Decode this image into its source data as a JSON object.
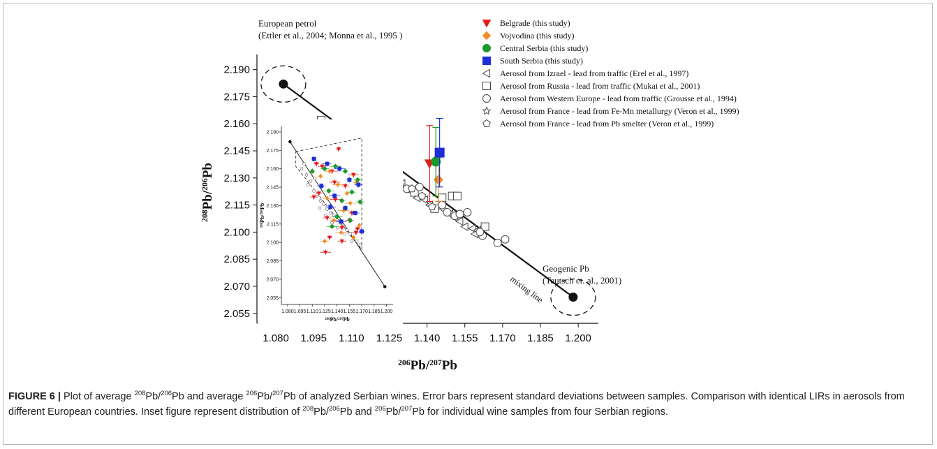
{
  "chart_data": {
    "type": "scatter",
    "xlabel": {
      "top": "206",
      "mid": "Pb/",
      "top2": "207",
      "end": "Pb"
    },
    "ylabel": {
      "top": "208",
      "mid": "Pb/",
      "top2": "206",
      "end": "Pb"
    },
    "xlim": [
      1.0725,
      1.208
    ],
    "ylim": [
      2.0495,
      2.1945
    ],
    "xticks": [
      "1.080",
      "1.095",
      "1.110",
      "1.125",
      "1.140",
      "1.155",
      "1.170",
      "1.185",
      "1.200"
    ],
    "yticks": [
      "2.190",
      "2.175",
      "2.160",
      "2.145",
      "2.130",
      "2.115",
      "2.100",
      "2.085",
      "2.070",
      "2.055"
    ],
    "colors": {
      "belgrade": "#e41a1c",
      "vojvodina": "#f28c28",
      "central": "#1a9a2a",
      "south": "#1c2fd6"
    },
    "endmembers": [
      {
        "label1": "European petrol",
        "label2": "(Ettler et al., 2004; Monna et al., 1995 )",
        "x": 1.083,
        "y": 2.182
      },
      {
        "label1": "Geogenic Pb",
        "label2": "(Teutsch et. al., 2001)",
        "x": 1.198,
        "y": 2.064
      }
    ],
    "mixing_line_label": "mixing line",
    "serbia": [
      {
        "name": "Belgrade (this study)",
        "marker": "triangle-down",
        "color": "#e41a1c",
        "x": 1.141,
        "y": 2.138,
        "yerr": 0.021
      },
      {
        "name": "Vojvodina (this study)",
        "marker": "diamond",
        "color": "#f28c28",
        "x": 1.1445,
        "y": 2.129,
        "yerr": 0.012
      },
      {
        "name": "Central Serbia (this study)",
        "marker": "circle-filled",
        "color": "#1a9a2a",
        "x": 1.1435,
        "y": 2.139,
        "yerr": 0.019
      },
      {
        "name": "South Serbia (this study)",
        "marker": "square-filled",
        "color": "#1c2fd6",
        "x": 1.145,
        "y": 2.144,
        "yerr": 0.019
      }
    ],
    "reference": [
      {
        "name": "Aerosol from Izrael - lead from traffic (Erel et al., 1997)",
        "marker": "triangle-left",
        "points": [
          [
            1.113,
            2.146
          ],
          [
            1.115,
            2.143
          ],
          [
            1.124,
            2.132
          ],
          [
            1.126,
            2.131
          ],
          [
            1.128,
            2.129
          ],
          [
            1.13,
            2.127
          ],
          [
            1.133,
            2.123
          ],
          [
            1.136,
            2.119
          ],
          [
            1.139,
            2.118
          ],
          [
            1.141,
            2.115
          ],
          [
            1.146,
            2.113
          ],
          [
            1.149,
            2.11
          ],
          [
            1.151,
            2.108
          ],
          [
            1.153,
            2.106
          ],
          [
            1.155,
            2.103
          ],
          [
            1.158,
            2.102
          ],
          [
            1.16,
            2.101
          ],
          [
            1.159,
            2.099
          ]
        ]
      },
      {
        "name": "Aerosol from Russia - lead from traffic (Mukai et al., 2001)",
        "marker": "square-open",
        "points": [
          [
            1.098,
            2.162
          ],
          [
            1.113,
            2.142
          ],
          [
            1.135,
            2.122
          ],
          [
            1.143,
            2.113
          ],
          [
            1.146,
            2.119
          ],
          [
            1.15,
            2.12
          ],
          [
            1.152,
            2.12
          ],
          [
            1.163,
            2.103
          ]
        ]
      },
      {
        "name": "Aerosol from Western Europe - lead from traffic (Grousse et al., 1994)",
        "marker": "circle-open",
        "points": [
          [
            1.129,
            2.126
          ],
          [
            1.132,
            2.124
          ],
          [
            1.137,
            2.125
          ],
          [
            1.146,
            2.115
          ],
          [
            1.148,
            2.111
          ],
          [
            1.151,
            2.109
          ],
          [
            1.153,
            2.11
          ],
          [
            1.156,
            2.111
          ],
          [
            1.162,
            2.098
          ],
          [
            1.168,
            2.094
          ],
          [
            1.171,
            2.096
          ],
          [
            1.161,
            2.1
          ]
        ]
      },
      {
        "name": "Aerosol from France - lead from Fe-Mn metallurgy (Veron et al., 1999)",
        "marker": "star-open",
        "points": [
          [
            1.107,
            2.157
          ],
          [
            1.111,
            2.153
          ],
          [
            1.118,
            2.141
          ]
        ]
      },
      {
        "name": "Aerosol from France - lead from Pb smelter (Veron et al., 1999)",
        "marker": "pentagon-open",
        "points": [
          [
            1.134,
            2.124
          ],
          [
            1.138,
            2.12
          ],
          [
            1.142,
            2.114
          ]
        ]
      }
    ],
    "inset": {
      "xticks": [
        "1.080",
        "1.095",
        "1.110",
        "1.125",
        "1.140",
        "1.155",
        "1.170",
        "1.185",
        "1.200"
      ],
      "yticks": [
        "2.190",
        "2.175",
        "2.160",
        "2.145",
        "2.130",
        "2.115",
        "2.100",
        "2.085",
        "2.070",
        "2.055"
      ],
      "xlim": [
        1.0725,
        1.208
      ],
      "ylim": [
        2.0495,
        2.1945
      ],
      "xlabel": {
        "top": "206",
        "mid": "Pb/",
        "top2": "207",
        "end": "Pb"
      },
      "ylabel": {
        "top": "208",
        "mid": "Pb/",
        "top2": "206",
        "end": "Pb"
      },
      "line": [
        [
          1.083,
          2.182
        ],
        [
          1.198,
          2.064
        ]
      ],
      "envelope": [
        [
          1.09,
          2.174
        ],
        [
          1.17,
          2.185
        ],
        [
          1.17,
          2.094
        ],
        [
          1.09,
          2.162
        ]
      ],
      "samples": {
        "belgrade": [
          [
            1.115,
            2.164
          ],
          [
            1.122,
            2.162
          ],
          [
            1.134,
            2.158
          ],
          [
            1.142,
            2.176
          ],
          [
            1.15,
            2.146
          ],
          [
            1.16,
            2.155
          ],
          [
            1.118,
            2.14
          ],
          [
            1.128,
            2.12
          ],
          [
            1.138,
            2.135
          ],
          [
            1.146,
            2.112
          ],
          [
            1.155,
            2.118
          ],
          [
            1.163,
            2.108
          ],
          [
            1.131,
            2.104
          ],
          [
            1.146,
            2.101
          ],
          [
            1.126,
            2.092
          ],
          [
            1.158,
            2.124
          ],
          [
            1.112,
            2.137
          ],
          [
            1.137,
            2.149
          ],
          [
            1.165,
            2.111
          ]
        ],
        "vojvodina": [
          [
            1.12,
            2.154
          ],
          [
            1.131,
            2.158
          ],
          [
            1.141,
            2.147
          ],
          [
            1.152,
            2.14
          ],
          [
            1.136,
            2.118
          ],
          [
            1.145,
            2.108
          ],
          [
            1.16,
            2.104
          ],
          [
            1.125,
            2.101
          ],
          [
            1.156,
            2.132
          ],
          [
            1.167,
            2.114
          ],
          [
            1.128,
            2.136
          ],
          [
            1.148,
            2.126
          ],
          [
            1.163,
            2.149
          ]
        ],
        "central": [
          [
            1.11,
            2.158
          ],
          [
            1.125,
            2.16
          ],
          [
            1.138,
            2.162
          ],
          [
            1.15,
            2.158
          ],
          [
            1.165,
            2.151
          ],
          [
            1.13,
            2.142
          ],
          [
            1.146,
            2.134
          ],
          [
            1.158,
            2.141
          ],
          [
            1.14,
            2.121
          ],
          [
            1.156,
            2.118
          ],
          [
            1.168,
            2.133
          ],
          [
            1.134,
            2.113
          ]
        ],
        "south": [
          [
            1.112,
            2.168
          ],
          [
            1.128,
            2.164
          ],
          [
            1.143,
            2.16
          ],
          [
            1.155,
            2.151
          ],
          [
            1.166,
            2.147
          ],
          [
            1.137,
            2.138
          ],
          [
            1.15,
            2.128
          ],
          [
            1.162,
            2.124
          ],
          [
            1.145,
            2.117
          ],
          [
            1.17,
            2.109
          ],
          [
            1.121,
            2.146
          ],
          [
            1.132,
            2.129
          ]
        ],
        "reference": [
          [
            1.097,
            2.16
          ],
          [
            1.103,
            2.155
          ],
          [
            1.108,
            2.15
          ],
          [
            1.112,
            2.142
          ],
          [
            1.116,
            2.139
          ],
          [
            1.12,
            2.134
          ],
          [
            1.124,
            2.131
          ],
          [
            1.128,
            2.127
          ],
          [
            1.132,
            2.124
          ],
          [
            1.136,
            2.122
          ],
          [
            1.14,
            2.118
          ],
          [
            1.144,
            2.116
          ],
          [
            1.148,
            2.113
          ],
          [
            1.152,
            2.11
          ],
          [
            1.156,
            2.107
          ],
          [
            1.16,
            2.104
          ],
          [
            1.164,
            2.101
          ],
          [
            1.168,
            2.098
          ],
          [
            1.105,
            2.147
          ],
          [
            1.113,
            2.152
          ],
          [
            1.119,
            2.128
          ],
          [
            1.126,
            2.122
          ],
          [
            1.134,
            2.116
          ],
          [
            1.141,
            2.112
          ],
          [
            1.149,
            2.107
          ],
          [
            1.158,
            2.101
          ],
          [
            1.1,
            2.164
          ]
        ]
      }
    }
  },
  "caption": {
    "fig": "FIGURE 6 |",
    "t1": " Plot of average ",
    "s1": "208",
    "t2": "Pb/",
    "s2": "206",
    "t3": "Pb and average ",
    "s3": "206",
    "t4": "Pb/",
    "s4": "207",
    "t5": "Pb of analyzed Serbian wines. Error bars represent standard deviations between samples. Comparison with identical LIRs in aerosols from different European countries. Inset figure represent distribution of ",
    "s5": "208",
    "t6": "Pb/",
    "s6": "206",
    "t7": "Pb and ",
    "s7": "206",
    "t8": "Pb/",
    "s8": "207",
    "t9": "Pb for individual wine samples from four Serbian regions."
  }
}
